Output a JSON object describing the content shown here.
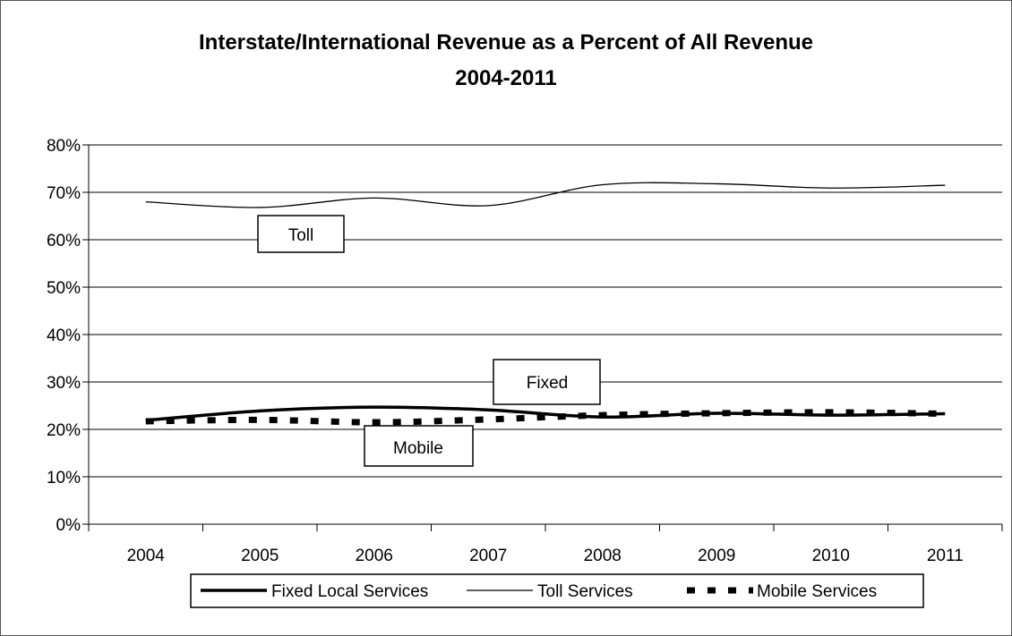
{
  "chart_data": {
    "type": "line",
    "title": "Interstate/International Revenue as a Percent of All Revenue",
    "subtitle": "2004-2011",
    "xlabel": "",
    "ylabel": "",
    "categories": [
      "2004",
      "2005",
      "2006",
      "2007",
      "2008",
      "2009",
      "2010",
      "2011"
    ],
    "ylim": [
      0,
      80
    ],
    "yticks": [
      0,
      10,
      20,
      30,
      40,
      50,
      60,
      70,
      80
    ],
    "ytick_labels": [
      "0%",
      "10%",
      "20%",
      "30%",
      "40%",
      "50%",
      "60%",
      "70%",
      "80%"
    ],
    "grid": true,
    "legend_position": "bottom",
    "series": [
      {
        "name": "Fixed Local Services",
        "style": "thick-solid",
        "color": "#000000",
        "values": [
          21.9,
          23.9,
          24.7,
          24.1,
          22.6,
          23.4,
          23.0,
          23.3
        ]
      },
      {
        "name": "Toll Services",
        "style": "thin-solid",
        "color": "#000000",
        "values": [
          68.0,
          66.8,
          68.8,
          67.2,
          71.6,
          71.8,
          70.9,
          71.5
        ]
      },
      {
        "name": "Mobile Services",
        "style": "dashed",
        "color": "#000000",
        "values": [
          21.7,
          22.0,
          21.5,
          22.1,
          23.0,
          23.4,
          23.6,
          23.3
        ]
      }
    ],
    "annotations": [
      "Toll",
      "Fixed",
      "Mobile"
    ]
  }
}
